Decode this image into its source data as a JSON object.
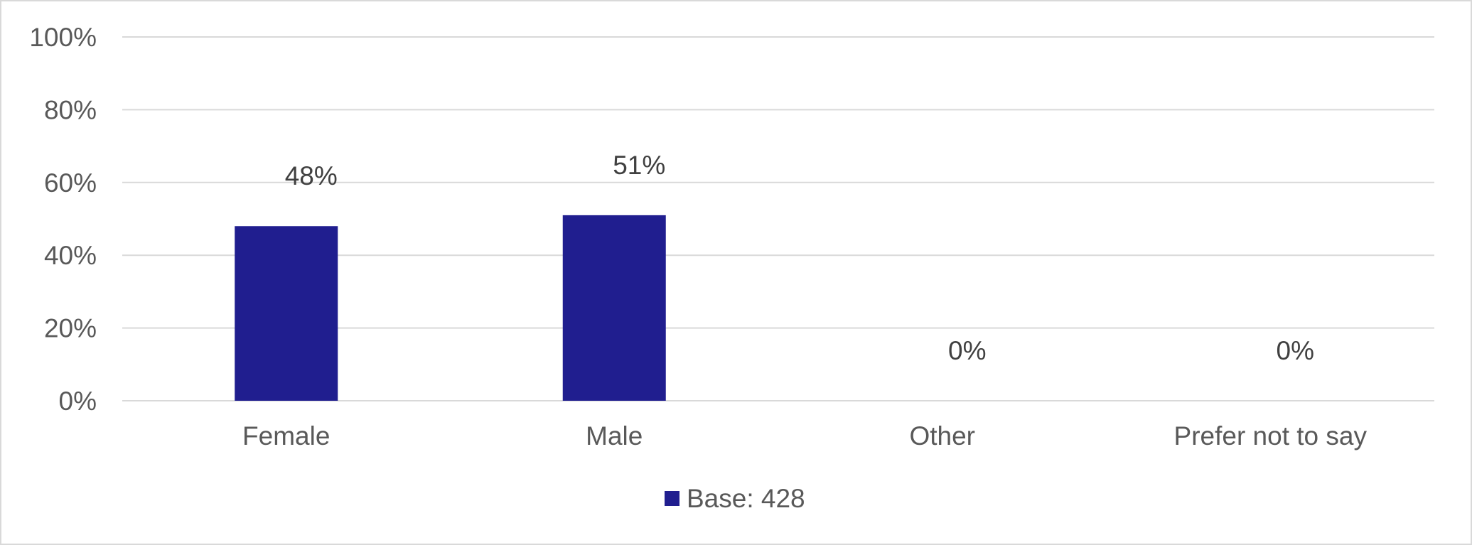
{
  "chart_data": {
    "type": "bar",
    "categories": [
      "Female",
      "Male",
      "Other",
      "Prefer not to say"
    ],
    "series": [
      {
        "name": "Base: 428",
        "values": [
          48,
          51,
          0,
          0
        ],
        "labels": [
          "48%",
          "51%",
          "0%",
          "0%"
        ],
        "color": "#201e8f"
      }
    ],
    "ylim": [
      0,
      100
    ],
    "yticks": [
      0,
      20,
      40,
      60,
      80,
      100
    ],
    "ytick_labels": [
      "0%",
      "20%",
      "40%",
      "60%",
      "80%",
      "100%"
    ],
    "grid": true,
    "legend": "bottom-center"
  }
}
